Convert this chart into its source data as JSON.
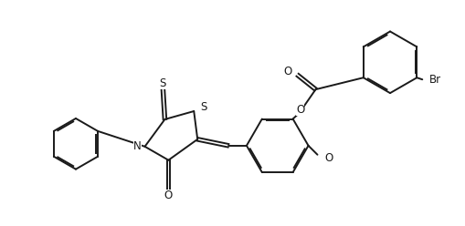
{
  "bg_color": "#ffffff",
  "line_color": "#1a1a1a",
  "line_width": 1.4,
  "font_size": 8.5,
  "fig_width": 5.1,
  "fig_height": 2.48,
  "dpi": 100,
  "labels": {
    "S_thioxo": "S",
    "S_ring": "S",
    "N": "N",
    "O_carbonyl": "O",
    "O_ester": "O",
    "O_methoxy": "O",
    "Br": "Br"
  }
}
